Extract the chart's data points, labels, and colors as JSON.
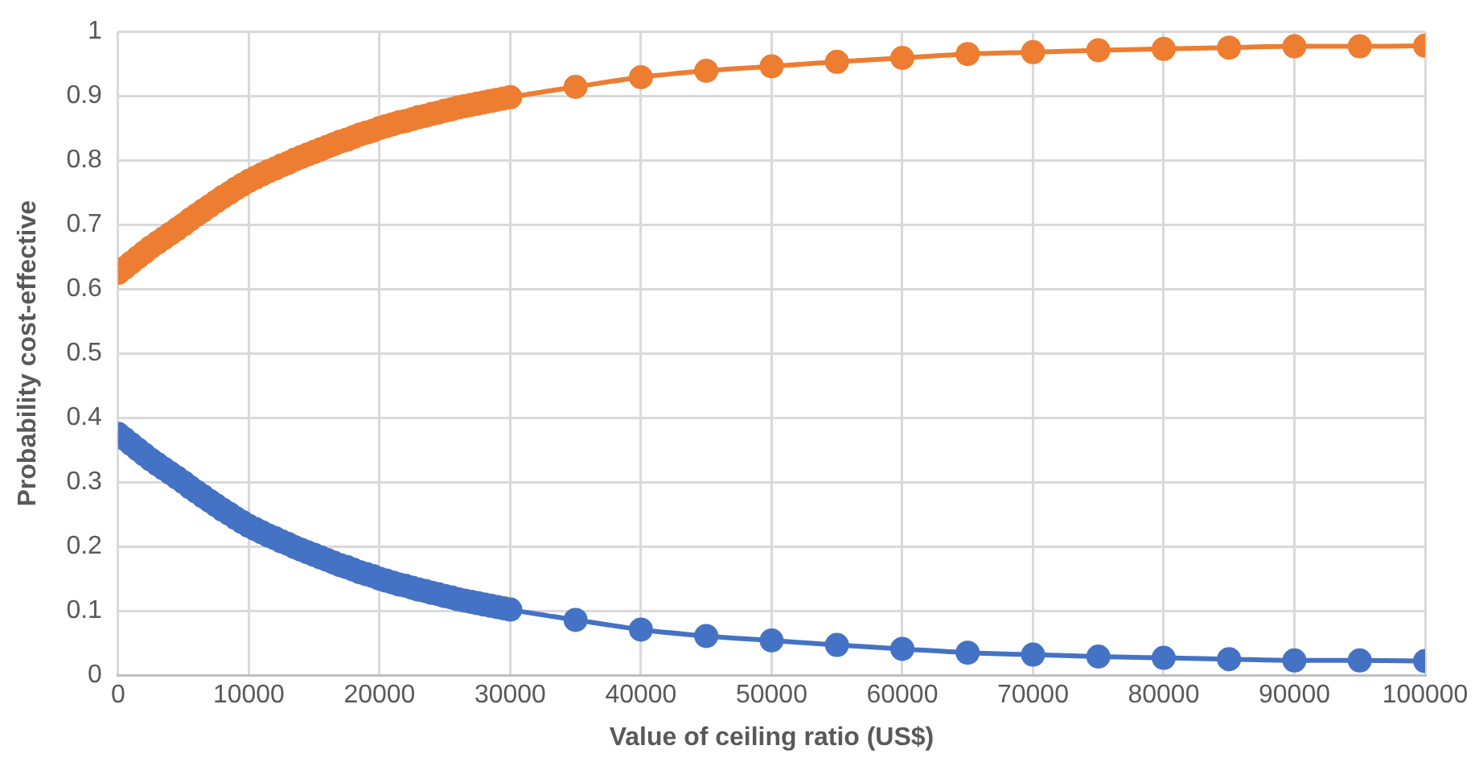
{
  "chart_data": {
    "type": "line",
    "xlabel": "Value of ceiling ratio (US$)",
    "ylabel": "Probability cost-effective",
    "x": [
      0,
      500,
      1000,
      1500,
      2000,
      2500,
      3000,
      3500,
      4000,
      4500,
      5000,
      5500,
      6000,
      6500,
      7000,
      7500,
      8000,
      8500,
      9000,
      9500,
      10000,
      10500,
      11000,
      11500,
      12000,
      12500,
      13000,
      13500,
      14000,
      14500,
      15000,
      15500,
      16000,
      16500,
      17000,
      17500,
      18000,
      18500,
      19000,
      19500,
      20000,
      20500,
      21000,
      21500,
      22000,
      22500,
      23000,
      23500,
      24000,
      24500,
      25000,
      25500,
      26000,
      26500,
      27000,
      27500,
      28000,
      28500,
      29000,
      29500,
      30000,
      35000,
      40000,
      45000,
      50000,
      55000,
      60000,
      65000,
      70000,
      75000,
      80000,
      85000,
      90000,
      95000,
      100000
    ],
    "series": [
      {
        "color": "#4472c4",
        "values": [
          0.375,
          0.367,
          0.359,
          0.351,
          0.343,
          0.335,
          0.328,
          0.321,
          0.314,
          0.307,
          0.3,
          0.292,
          0.285,
          0.278,
          0.271,
          0.264,
          0.257,
          0.251,
          0.244,
          0.238,
          0.232,
          0.227,
          0.222,
          0.217,
          0.213,
          0.208,
          0.204,
          0.199,
          0.195,
          0.191,
          0.187,
          0.183,
          0.179,
          0.175,
          0.171,
          0.168,
          0.164,
          0.16,
          0.157,
          0.154,
          0.15,
          0.147,
          0.144,
          0.141,
          0.139,
          0.136,
          0.133,
          0.131,
          0.128,
          0.126,
          0.123,
          0.121,
          0.118,
          0.116,
          0.114,
          0.112,
          0.11,
          0.108,
          0.106,
          0.104,
          0.102,
          0.086,
          0.071,
          0.061,
          0.054,
          0.047,
          0.041,
          0.035,
          0.032,
          0.029,
          0.027,
          0.025,
          0.023,
          0.023,
          0.022
        ]
      },
      {
        "color": "#ed7d31",
        "values": [
          0.625,
          0.633,
          0.641,
          0.649,
          0.657,
          0.665,
          0.672,
          0.679,
          0.686,
          0.693,
          0.7,
          0.708,
          0.715,
          0.722,
          0.729,
          0.736,
          0.743,
          0.749,
          0.756,
          0.762,
          0.768,
          0.773,
          0.778,
          0.783,
          0.787,
          0.792,
          0.796,
          0.801,
          0.805,
          0.809,
          0.813,
          0.817,
          0.821,
          0.825,
          0.829,
          0.832,
          0.836,
          0.84,
          0.843,
          0.846,
          0.85,
          0.853,
          0.856,
          0.859,
          0.861,
          0.864,
          0.867,
          0.869,
          0.872,
          0.874,
          0.877,
          0.879,
          0.882,
          0.884,
          0.886,
          0.888,
          0.89,
          0.892,
          0.894,
          0.896,
          0.898,
          0.914,
          0.929,
          0.939,
          0.946,
          0.953,
          0.959,
          0.965,
          0.968,
          0.971,
          0.973,
          0.975,
          0.977,
          0.977,
          0.978
        ]
      }
    ],
    "xlim": [
      0,
      100000
    ],
    "xticks": [
      0,
      10000,
      20000,
      30000,
      40000,
      50000,
      60000,
      70000,
      80000,
      90000,
      100000
    ],
    "ylim": [
      0,
      1
    ],
    "yticks": [
      0,
      0.1,
      0.2,
      0.3,
      0.4,
      0.5,
      0.6,
      0.7,
      0.8,
      0.9,
      1
    ],
    "grid": true,
    "legend": false,
    "marker": "circle",
    "line_style": "solid"
  }
}
